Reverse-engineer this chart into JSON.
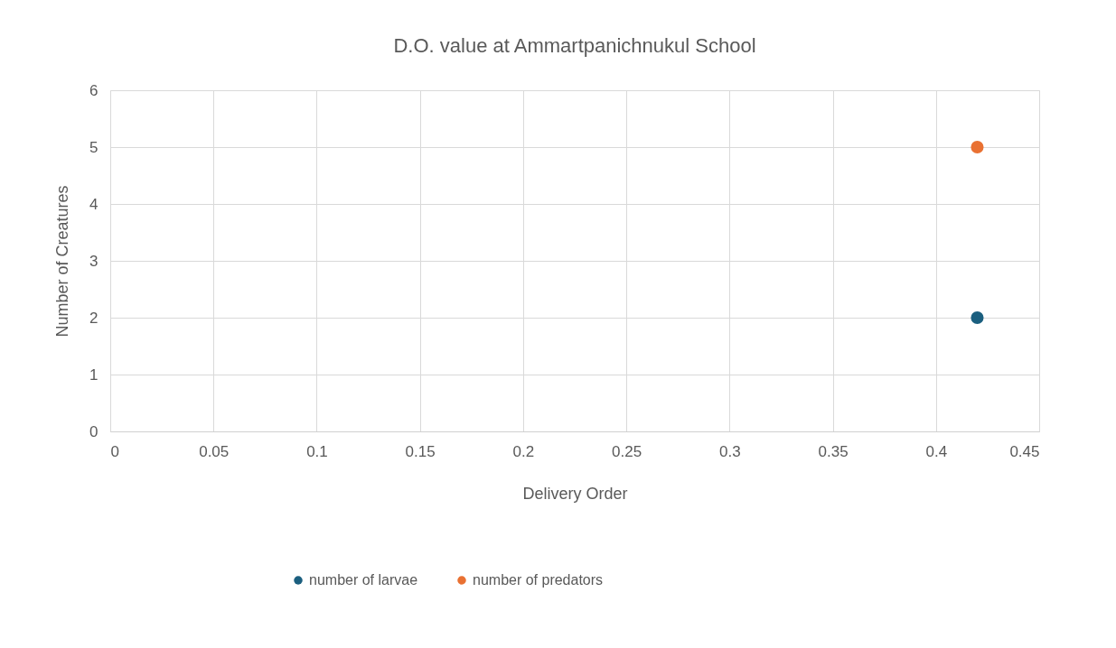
{
  "chart_data": {
    "type": "scatter",
    "title": "D.O. value at Ammartpanichnukul School",
    "xlabel": "Delivery Order",
    "ylabel": "Number of Creatures",
    "series": [
      {
        "name": "number of larvae",
        "color": "#1b5f7f",
        "x": [
          0.42
        ],
        "values": [
          2
        ]
      },
      {
        "name": "number of predators",
        "color": "#e97132",
        "x": [
          0.42
        ],
        "values": [
          5
        ]
      }
    ],
    "xlim": [
      0,
      0.45
    ],
    "xticks": [
      0,
      0.05,
      0.1,
      0.15,
      0.2,
      0.25,
      0.3,
      0.35,
      0.4,
      0.45
    ],
    "ylim": [
      0,
      6
    ],
    "yticks": [
      0,
      1,
      2,
      3,
      4,
      5,
      6
    ],
    "grid": true,
    "legend": "bottom",
    "marker": "circle"
  }
}
